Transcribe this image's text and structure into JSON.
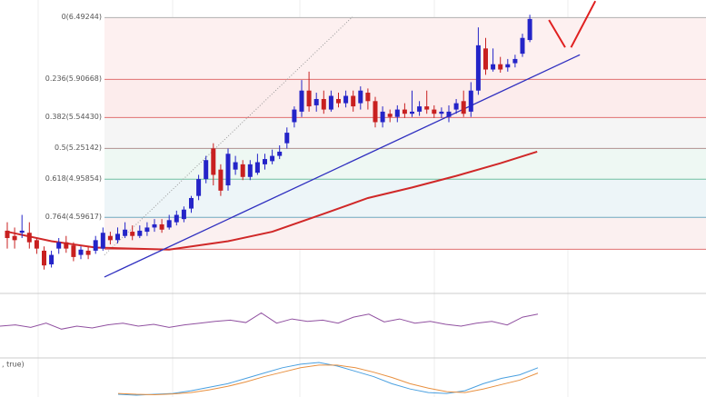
{
  "chart_data": {
    "type": "candlestick",
    "ylim": [
      3.9,
      6.66
    ],
    "up_color": "#2424c8",
    "down_color": "#c82020",
    "open": [
      4.47,
      4.42,
      4.45,
      4.45,
      4.38,
      4.28,
      4.15,
      4.3,
      4.36,
      4.33,
      4.24,
      4.28,
      4.28,
      4.3,
      4.42,
      4.38,
      4.42,
      4.46,
      4.42,
      4.46,
      4.5,
      4.53,
      4.5,
      4.55,
      4.58,
      4.68,
      4.8,
      4.96,
      5.25,
      5.05,
      4.9,
      5.05,
      5.1,
      4.98,
      5.02,
      5.1,
      5.13,
      5.18,
      5.3,
      5.5,
      5.6,
      5.8,
      5.66,
      5.72,
      5.62,
      5.72,
      5.68,
      5.75,
      5.68,
      5.78,
      5.7,
      5.5,
      5.58,
      5.55,
      5.62,
      5.58,
      5.6,
      5.65,
      5.62,
      5.58,
      5.55,
      5.62,
      5.7,
      5.6,
      5.8,
      6.2,
      6.0,
      6.05,
      6.02,
      6.06,
      6.15,
      6.28
    ],
    "high": [
      4.55,
      4.5,
      4.62,
      4.55,
      4.4,
      4.32,
      4.28,
      4.4,
      4.42,
      4.36,
      4.32,
      4.32,
      4.42,
      4.5,
      4.46,
      4.5,
      4.55,
      4.52,
      4.52,
      4.55,
      4.58,
      4.58,
      4.62,
      4.66,
      4.7,
      4.8,
      5.0,
      5.18,
      5.3,
      5.1,
      5.25,
      5.18,
      5.14,
      5.14,
      5.2,
      5.2,
      5.24,
      5.28,
      5.45,
      5.65,
      5.9,
      5.98,
      5.78,
      5.8,
      5.8,
      5.78,
      5.8,
      5.8,
      5.84,
      5.82,
      5.74,
      5.65,
      5.62,
      5.66,
      5.68,
      5.8,
      5.7,
      5.8,
      5.66,
      5.64,
      5.66,
      5.72,
      5.8,
      5.88,
      6.4,
      6.3,
      6.2,
      6.12,
      6.1,
      6.14,
      6.34,
      6.52
    ],
    "low": [
      4.3,
      4.3,
      4.4,
      4.3,
      4.25,
      4.1,
      4.12,
      4.25,
      4.26,
      4.18,
      4.2,
      4.2,
      4.25,
      4.28,
      4.34,
      4.35,
      4.4,
      4.38,
      4.4,
      4.42,
      4.46,
      4.45,
      4.48,
      4.52,
      4.55,
      4.64,
      4.76,
      4.92,
      4.9,
      4.8,
      4.85,
      5.0,
      4.95,
      4.95,
      5.0,
      5.05,
      5.1,
      5.15,
      5.25,
      5.45,
      5.55,
      5.6,
      5.6,
      5.58,
      5.6,
      5.64,
      5.64,
      5.6,
      5.62,
      5.62,
      5.45,
      5.45,
      5.5,
      5.5,
      5.54,
      5.55,
      5.56,
      5.58,
      5.54,
      5.54,
      5.5,
      5.58,
      5.55,
      5.55,
      5.76,
      5.95,
      5.98,
      5.97,
      5.98,
      6.02,
      6.12,
      6.26
    ],
    "close": [
      4.4,
      4.38,
      4.47,
      4.36,
      4.3,
      4.14,
      4.24,
      4.36,
      4.3,
      4.22,
      4.29,
      4.24,
      4.38,
      4.45,
      4.38,
      4.44,
      4.48,
      4.42,
      4.47,
      4.5,
      4.53,
      4.48,
      4.57,
      4.62,
      4.67,
      4.78,
      4.96,
      5.14,
      5.0,
      4.85,
      5.2,
      5.12,
      4.98,
      5.1,
      5.12,
      5.15,
      5.18,
      5.22,
      5.4,
      5.62,
      5.8,
      5.65,
      5.72,
      5.62,
      5.75,
      5.68,
      5.75,
      5.65,
      5.8,
      5.7,
      5.5,
      5.6,
      5.55,
      5.62,
      5.58,
      5.6,
      5.65,
      5.62,
      5.58,
      5.6,
      5.6,
      5.68,
      5.58,
      5.8,
      6.23,
      6.0,
      6.05,
      6.0,
      6.05,
      6.1,
      6.3,
      6.48
    ],
    "fib_levels": [
      {
        "value": 6.49244,
        "label": "0(6.49244)",
        "color": "#b0b0b0",
        "fill": "#fdf0f0"
      },
      {
        "value": 5.90668,
        "label": "0.236(5.90668)",
        "color": "#e07070",
        "fill": "#fcecec"
      },
      {
        "value": 5.5443,
        "label": "0.382(5.54430)",
        "color": "#e07070",
        "fill": "#f5f5f5"
      },
      {
        "value": 5.25142,
        "label": "0.5(5.25142)",
        "color": "#b09090",
        "fill": "#eef8f3"
      },
      {
        "value": 4.95854,
        "label": "0.618(4.95854)",
        "color": "#70c0a0",
        "fill": "#edf5f8"
      },
      {
        "value": 4.59617,
        "label": "0.764(4.59617)",
        "color": "#70a8c0",
        "fill": "#fbf0f0"
      },
      {
        "value": 4.29336,
        "color": "#e07070"
      }
    ],
    "ma_line": {
      "color": "#d02828",
      "x": [
        0,
        6,
        12,
        22,
        30,
        36,
        43,
        49,
        55,
        61,
        67,
        72
      ],
      "values": [
        4.46,
        4.37,
        4.31,
        4.29,
        4.37,
        4.46,
        4.63,
        4.78,
        4.88,
        4.99,
        5.11,
        5.22
      ]
    },
    "trend_line": {
      "color": "#3030c0",
      "x": [
        13.2,
        77.8
      ],
      "values": [
        4.03,
        6.14
      ]
    },
    "fan_line": {
      "color": "#999999",
      "x": [
        13.2,
        46.9
      ],
      "values": [
        4.24,
        6.5
      ]
    },
    "forecast": {
      "color": "#e02020",
      "x": [
        73.6,
        75.8,
        null,
        76.6,
        79.9
      ],
      "values": [
        6.47,
        6.21,
        null,
        6.21,
        6.65
      ]
    },
    "rsi": {
      "color": "#9050a0",
      "ylim": [
        0,
        100
      ],
      "values": [
        50,
        52,
        48,
        55,
        45,
        50,
        47,
        52,
        55,
        50,
        53,
        48,
        52,
        55,
        58,
        60,
        56,
        72,
        55,
        62,
        58,
        60,
        55,
        65,
        70,
        57,
        62,
        55,
        58,
        53,
        50,
        55,
        58,
        52,
        65,
        70
      ]
    },
    "macd": {
      "label": ", true)",
      "ylim": [
        -1,
        1
      ],
      "series": [
        {
          "color": "#4aa0e0",
          "values": [
            -0.9,
            -0.95,
            -0.9,
            -0.85,
            -0.7,
            -0.5,
            -0.3,
            0,
            0.3,
            0.6,
            0.8,
            0.9,
            0.7,
            0.4,
            0.1,
            -0.3,
            -0.6,
            -0.8,
            -0.85,
            -0.7,
            -0.3,
            0,
            0.2,
            0.6
          ]
        },
        {
          "color": "#e89040",
          "values": [
            -0.85,
            -0.9,
            -0.92,
            -0.88,
            -0.8,
            -0.65,
            -0.45,
            -0.2,
            0.1,
            0.35,
            0.6,
            0.75,
            0.75,
            0.6,
            0.35,
            0.05,
            -0.3,
            -0.55,
            -0.75,
            -0.8,
            -0.6,
            -0.35,
            -0.1,
            0.3
          ]
        }
      ]
    }
  }
}
